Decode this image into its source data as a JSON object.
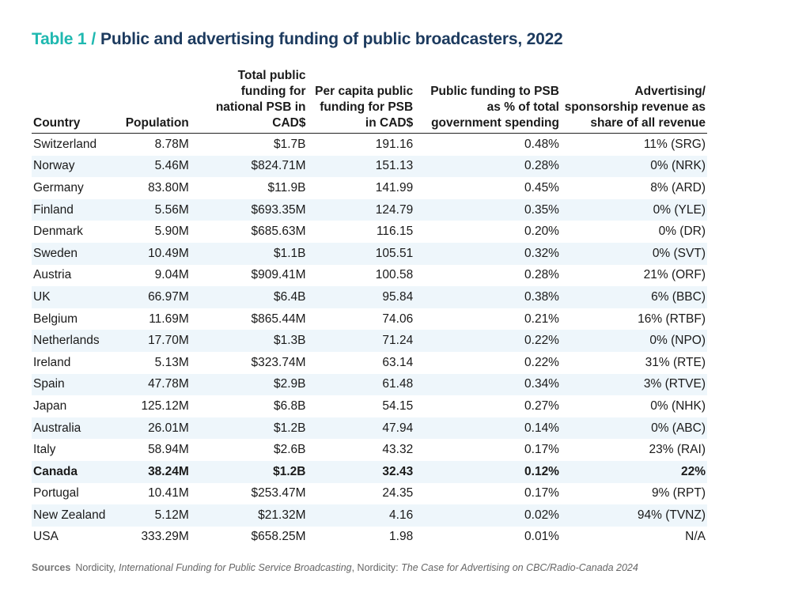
{
  "title": {
    "label": "Table 1",
    "separator": "/",
    "text": "Public and advertising funding of public broadcasters, 2022"
  },
  "columns": [
    "Country",
    "Population",
    "Total public funding for national PSB in CAD$",
    "Per capita public funding for PSB in CAD$",
    "Public funding to PSB as % of total government spending",
    "Advertising/ sponsorship revenue as share of all revenue"
  ],
  "rows": [
    [
      "Switzerland",
      "8.78M",
      "$1.7B",
      "191.16",
      "0.48%",
      "11% (SRG)"
    ],
    [
      "Norway",
      "5.46M",
      "$824.71M",
      "151.13",
      "0.28%",
      "0% (NRK)"
    ],
    [
      "Germany",
      "83.80M",
      "$11.9B",
      "141.99",
      "0.45%",
      "8% (ARD)"
    ],
    [
      "Finland",
      "5.56M",
      "$693.35M",
      "124.79",
      "0.35%",
      "0% (YLE)"
    ],
    [
      "Denmark",
      "5.90M",
      "$685.63M",
      "116.15",
      "0.20%",
      "0% (DR)"
    ],
    [
      "Sweden",
      "10.49M",
      "$1.1B",
      "105.51",
      "0.32%",
      "0% (SVT)"
    ],
    [
      "Austria",
      "9.04M",
      "$909.41M",
      "100.58",
      "0.28%",
      "21% (ORF)"
    ],
    [
      "UK",
      "66.97M",
      "$6.4B",
      "95.84",
      "0.38%",
      "6% (BBC)"
    ],
    [
      "Belgium",
      "11.69M",
      "$865.44M",
      "74.06",
      "0.21%",
      "16% (RTBF)"
    ],
    [
      "Netherlands",
      "17.70M",
      "$1.3B",
      "71.24",
      "0.22%",
      "0% (NPO)"
    ],
    [
      "Ireland",
      "5.13M",
      "$323.74M",
      "63.14",
      "0.22%",
      "31% (RTE)"
    ],
    [
      "Spain",
      "47.78M",
      "$2.9B",
      "61.48",
      "0.34%",
      "3% (RTVE)"
    ],
    [
      "Japan",
      "125.12M",
      "$6.8B",
      "54.15",
      "0.27%",
      "0% (NHK)"
    ],
    [
      "Australia",
      "26.01M",
      "$1.2B",
      "47.94",
      "0.14%",
      "0% (ABC)"
    ],
    [
      "Italy",
      "58.94M",
      "$2.6B",
      "43.32",
      "0.17%",
      "23% (RAI)"
    ],
    [
      "Canada",
      "38.24M",
      "$1.2B",
      "32.43",
      "0.12%",
      "22%"
    ],
    [
      "Portugal",
      "10.41M",
      "$253.47M",
      "24.35",
      "0.17%",
      "9% (RPT)"
    ],
    [
      "New Zealand",
      "5.12M",
      "$21.32M",
      "4.16",
      "0.02%",
      "94% (TVNZ)"
    ],
    [
      "USA",
      "333.29M",
      "$658.25M",
      "1.98",
      "0.01%",
      "N/A"
    ]
  ],
  "highlight_country": "Canada",
  "sources": {
    "label": "Sources",
    "part1": "Nordicity, ",
    "title1": "International Funding for Public Service Broadcasting",
    "part2": ", Nordicity: ",
    "title2": "The Case for Advertising on CBC/Radio-Canada 2024"
  },
  "colors": {
    "accent": "#1fb8b0",
    "title_text": "#1c3a5e",
    "stripe": "#eef6fb"
  }
}
